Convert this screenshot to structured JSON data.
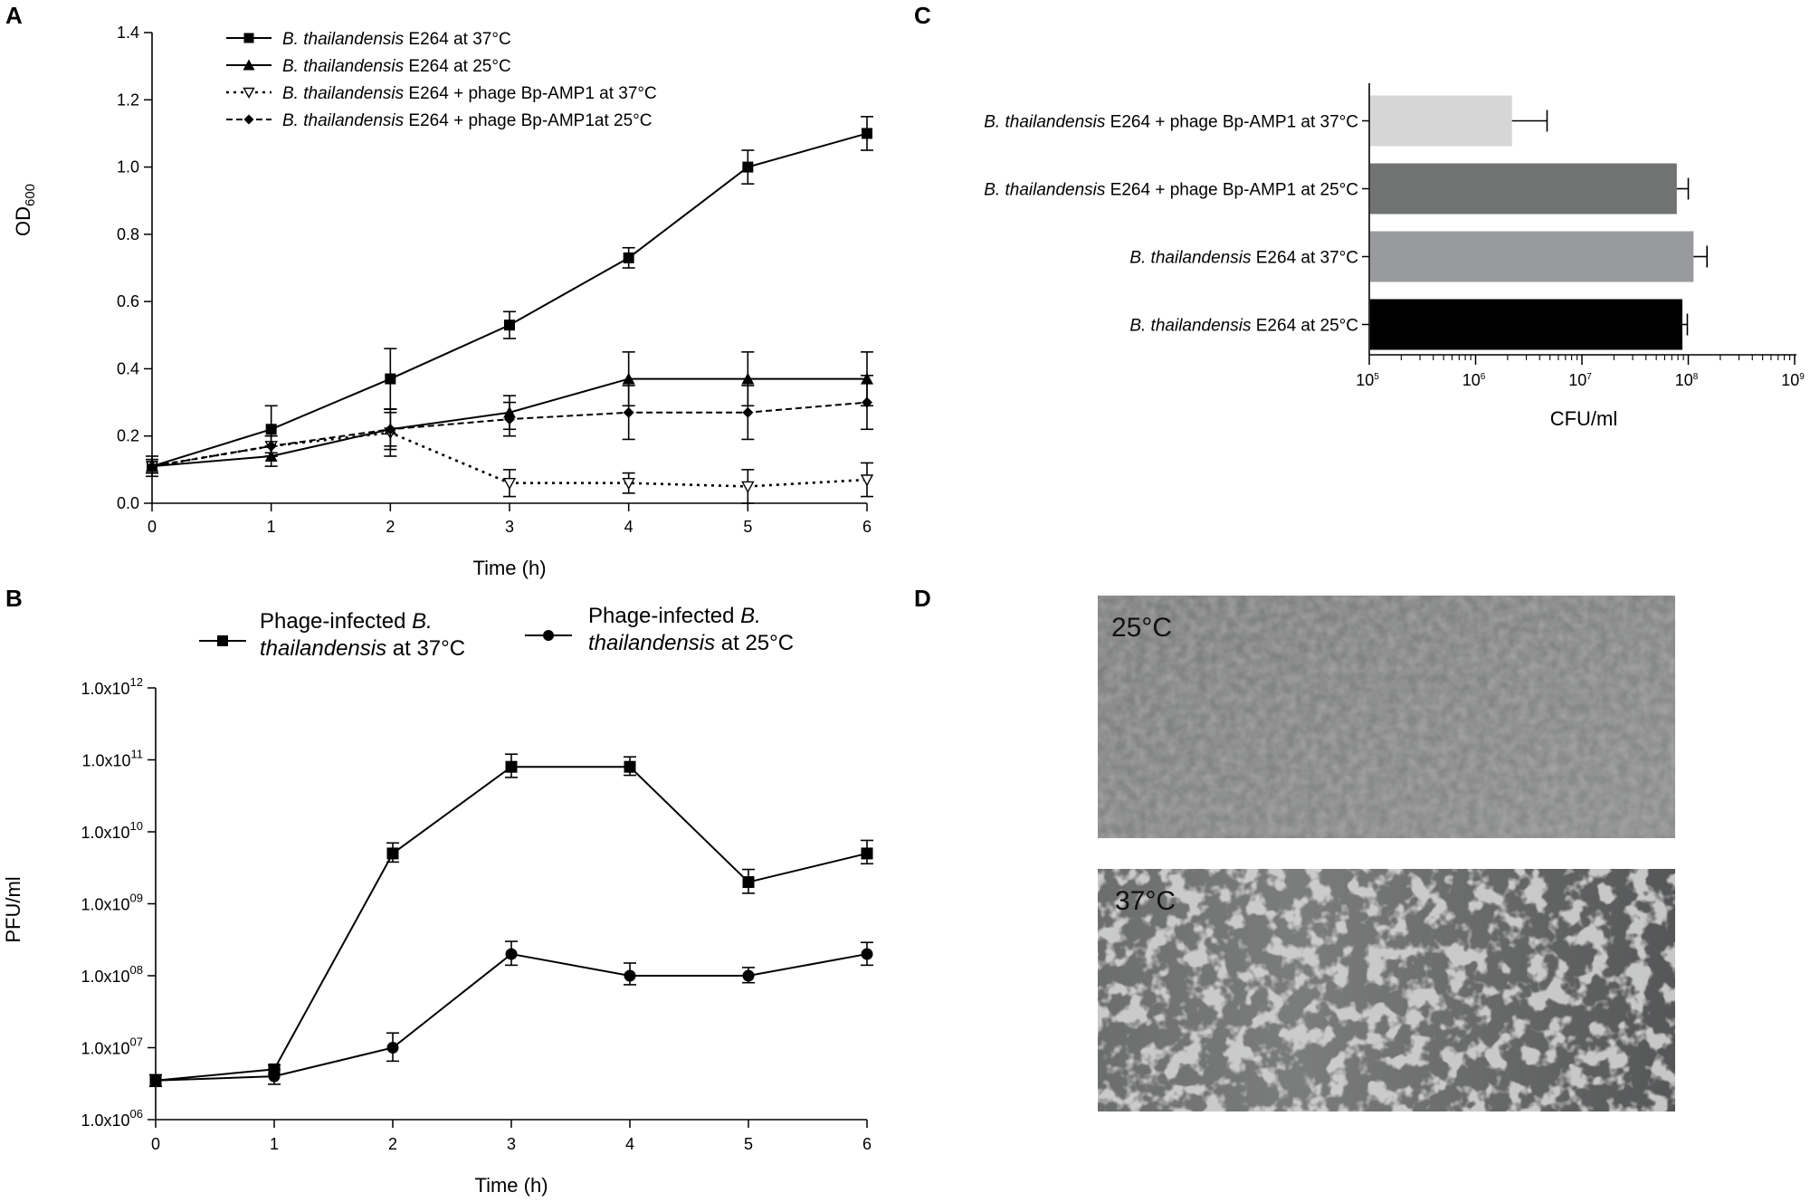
{
  "panels": {
    "a": {
      "letter": "A",
      "chart_data": {
        "type": "line",
        "xlabel": "Time (h)",
        "ylabel": "OD",
        "ylabel_sub": "600",
        "x": [
          0,
          1,
          2,
          3,
          4,
          5,
          6
        ],
        "xticks": [
          "0",
          "1",
          "2",
          "3",
          "4",
          "5",
          "6"
        ],
        "ylim": [
          0,
          1.4
        ],
        "yticks": [
          "0.0",
          "0.2",
          "0.4",
          "0.6",
          "0.8",
          "1.0",
          "1.2",
          "1.4"
        ],
        "series": [
          {
            "name_italic": "B. thailandensis",
            "name_rest": " E264 at 37°C",
            "marker": "square",
            "dash": "solid",
            "values": [
              0.11,
              0.22,
              0.37,
              0.53,
              0.73,
              1.0,
              1.1
            ],
            "errors": [
              0.03,
              0.07,
              0.09,
              0.04,
              0.03,
              0.05,
              0.05
            ]
          },
          {
            "name_italic": "B. thailandensis",
            "name_rest": " E264 at 25°C",
            "marker": "triangle",
            "dash": "solid",
            "values": [
              0.11,
              0.14,
              0.22,
              0.27,
              0.37,
              0.37,
              0.37
            ],
            "errors": [
              0.02,
              0.03,
              0.05,
              0.05,
              0.08,
              0.08,
              0.08
            ]
          },
          {
            "name_italic": "B. thailandensis",
            "name_rest": " E264 + phage Bp-AMP1 at 37°C",
            "marker": "open-triangle-down",
            "dash": "dotted",
            "values": [
              0.11,
              0.17,
              0.21,
              0.06,
              0.06,
              0.05,
              0.07
            ],
            "errors": [
              0.02,
              0.03,
              0.07,
              0.04,
              0.03,
              0.05,
              0.05
            ]
          },
          {
            "name_italic": "B. thailandensis",
            "name_rest": " E264 + phage Bp-AMP1at 25°C",
            "marker": "diamond",
            "dash": "dashed",
            "values": [
              0.11,
              0.17,
              0.22,
              0.25,
              0.27,
              0.27,
              0.3
            ],
            "errors": [
              0.02,
              0.03,
              0.06,
              0.05,
              0.08,
              0.08,
              0.08
            ]
          }
        ]
      }
    },
    "b": {
      "letter": "B",
      "chart_data": {
        "type": "line",
        "xlabel": "Time (h)",
        "ylabel": "PFU/ml",
        "scale": "log",
        "x": [
          0,
          1,
          2,
          3,
          4,
          5,
          6
        ],
        "xticks": [
          "0",
          "1",
          "2",
          "3",
          "4",
          "5",
          "6"
        ],
        "ylim": [
          1000000,
          1000000000000
        ],
        "yticks": [
          {
            "mant": "1.0x10",
            "exp": "06"
          },
          {
            "mant": "1.0x10",
            "exp": "07"
          },
          {
            "mant": "1.0x10",
            "exp": "08"
          },
          {
            "mant": "1.0x10",
            "exp": "09"
          },
          {
            "mant": "1.0x10",
            "exp": "10"
          },
          {
            "mant": "1.0x10",
            "exp": "11"
          },
          {
            "mant": "1.0x10",
            "exp": "12"
          }
        ],
        "series": [
          {
            "line1": "Phage-infected ",
            "line1_italic": "B.",
            "line2_italic": "thailandensis",
            "line2": " at 37°C",
            "marker": "square",
            "values": [
              3500000,
              5000000,
              5000000000,
              80000000000,
              80000000000,
              2000000000,
              5000000000
            ],
            "err_low": [
              2900000,
              4300000,
              3800000000,
              57000000000,
              61000000000,
              1400000000,
              3600000000
            ],
            "err_high": [
              4200000,
              5700000,
              7000000000,
              120000000000,
              110000000000,
              3000000000,
              7600000000
            ]
          },
          {
            "line1": "Phage-infected ",
            "line1_italic": "B.",
            "line2_italic": "thailandensis",
            "line2": " at 25°C",
            "marker": "circle",
            "values": [
              3500000,
              4000000,
              10000000,
              200000000,
              100000000,
              100000000,
              200000000
            ],
            "err_low": [
              2900000,
              3100000,
              6500000,
              140000000,
              75000000,
              80000000,
              140000000
            ],
            "err_high": [
              4200000,
              5000000,
              16000000,
              300000000,
              150000000,
              130000000,
              290000000
            ]
          }
        ]
      }
    },
    "c": {
      "letter": "C",
      "chart_data": {
        "type": "bar",
        "orientation": "horizontal",
        "xlabel": "CFU/ml",
        "scale": "log",
        "xlim": [
          100000,
          1000000000
        ],
        "xticks": [
          {
            "base": "10",
            "exp": "5"
          },
          {
            "base": "10",
            "exp": "6"
          },
          {
            "base": "10",
            "exp": "7"
          },
          {
            "base": "10",
            "exp": "8"
          },
          {
            "base": "10",
            "exp": "9"
          }
        ],
        "categories": [
          {
            "italic": "B. thailandensis",
            "rest": " E264 + phage Bp-AMP1 at 37°C",
            "value": 2200000,
            "err_high": 4700000,
            "color": "#d6d6d6"
          },
          {
            "italic": "B. thailandensis",
            "rest": " E264 + phage Bp-AMP1 at 25°C",
            "value": 78000000,
            "err_high": 100000000,
            "color": "#717373"
          },
          {
            "italic": "B. thailandensis",
            "rest": " E264 at 37°C",
            "value": 112000000,
            "err_high": 150000000,
            "color": "#999a9d"
          },
          {
            "italic": "B. thailandensis",
            "rest": " E264 at 25°C",
            "value": 88000000,
            "err_high": 98000000,
            "color": "#000000"
          }
        ]
      }
    },
    "d": {
      "letter": "D",
      "photos": [
        {
          "label": "25°C",
          "tone": "#8e8e8e"
        },
        {
          "label": "37°C",
          "tone": "#7f8080"
        }
      ]
    }
  }
}
